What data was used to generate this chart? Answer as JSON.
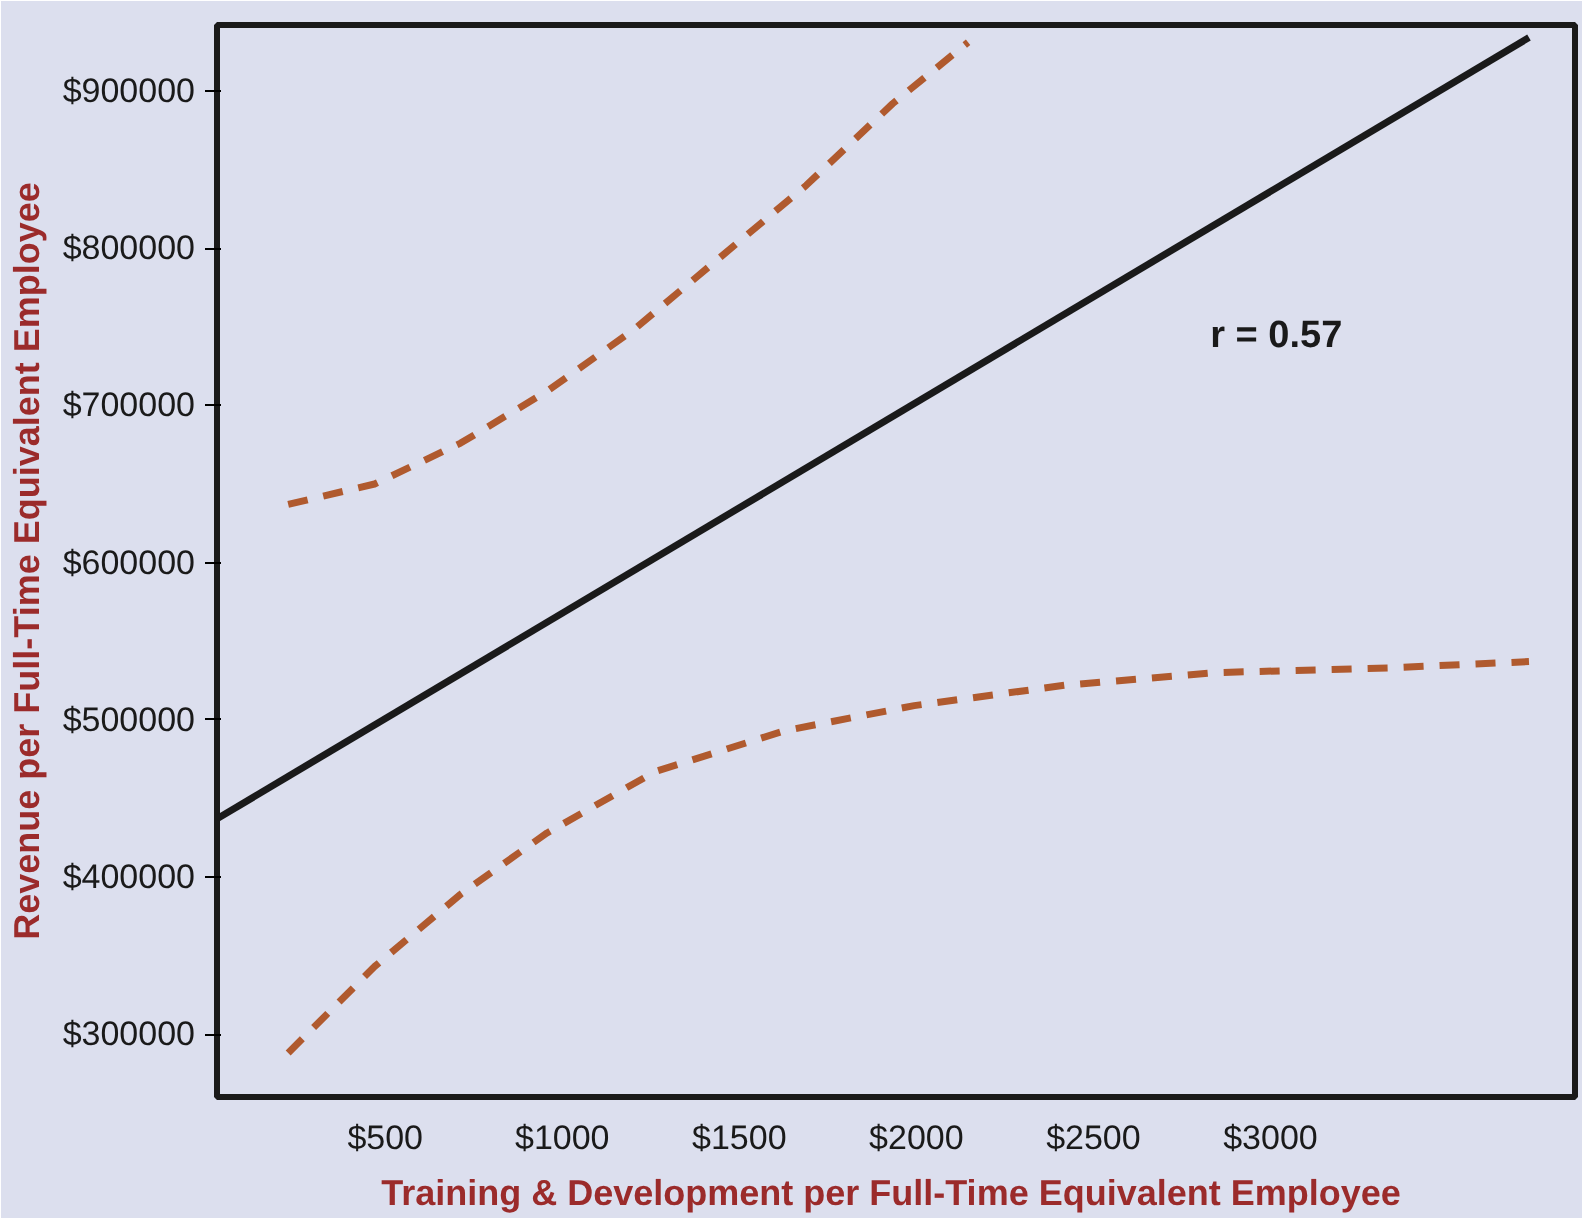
{
  "chart_data": {
    "type": "line",
    "xlabel": "Training & Development  per Full-Time Equivalent Employee",
    "ylabel": "Revenue per Full-Time Equivalent Employee",
    "xlim": [
      25,
      3860
    ],
    "ylim": [
      260000,
      942000
    ],
    "xticks": [
      {
        "value": 500,
        "label": "$500"
      },
      {
        "value": 1000,
        "label": "$1000"
      },
      {
        "value": 1500,
        "label": "$1500"
      },
      {
        "value": 2000,
        "label": "$2000"
      },
      {
        "value": 2500,
        "label": "$2500"
      },
      {
        "value": 3000,
        "label": "$3000"
      }
    ],
    "yticks": [
      {
        "value": 300000,
        "label": "$300000"
      },
      {
        "value": 400000,
        "label": "$400000"
      },
      {
        "value": 500000,
        "label": "$500000"
      },
      {
        "value": 600000,
        "label": "$600000"
      },
      {
        "value": 700000,
        "label": "$700000"
      },
      {
        "value": 800000,
        "label": "$800000"
      },
      {
        "value": 900000,
        "label": "$900000"
      }
    ],
    "grid": false,
    "annotations": [
      "r = 0.57"
    ],
    "series": [
      {
        "color": "#1a1a1a",
        "line_style": "solid",
        "x": [
          25,
          3730
        ],
        "values": [
          437000,
          934000
        ]
      },
      {
        "color": "#b05a2e",
        "line_style": "dashed",
        "x": [
          226,
          470,
          713,
          957,
          1201,
          1445,
          1689,
          1933,
          2146
        ],
        "values": [
          637000,
          650000,
          676000,
          709000,
          748000,
          794000,
          840000,
          892000,
          931000
        ]
      },
      {
        "color": "#b05a2e",
        "line_style": "dashed",
        "x": [
          226,
          470,
          713,
          957,
          1262,
          1628,
          1994,
          2421,
          2848,
          3335,
          3730
        ],
        "values": [
          288000,
          343000,
          389000,
          428000,
          467000,
          493000,
          509000,
          522000,
          530000,
          533000,
          537000
        ]
      }
    ]
  }
}
